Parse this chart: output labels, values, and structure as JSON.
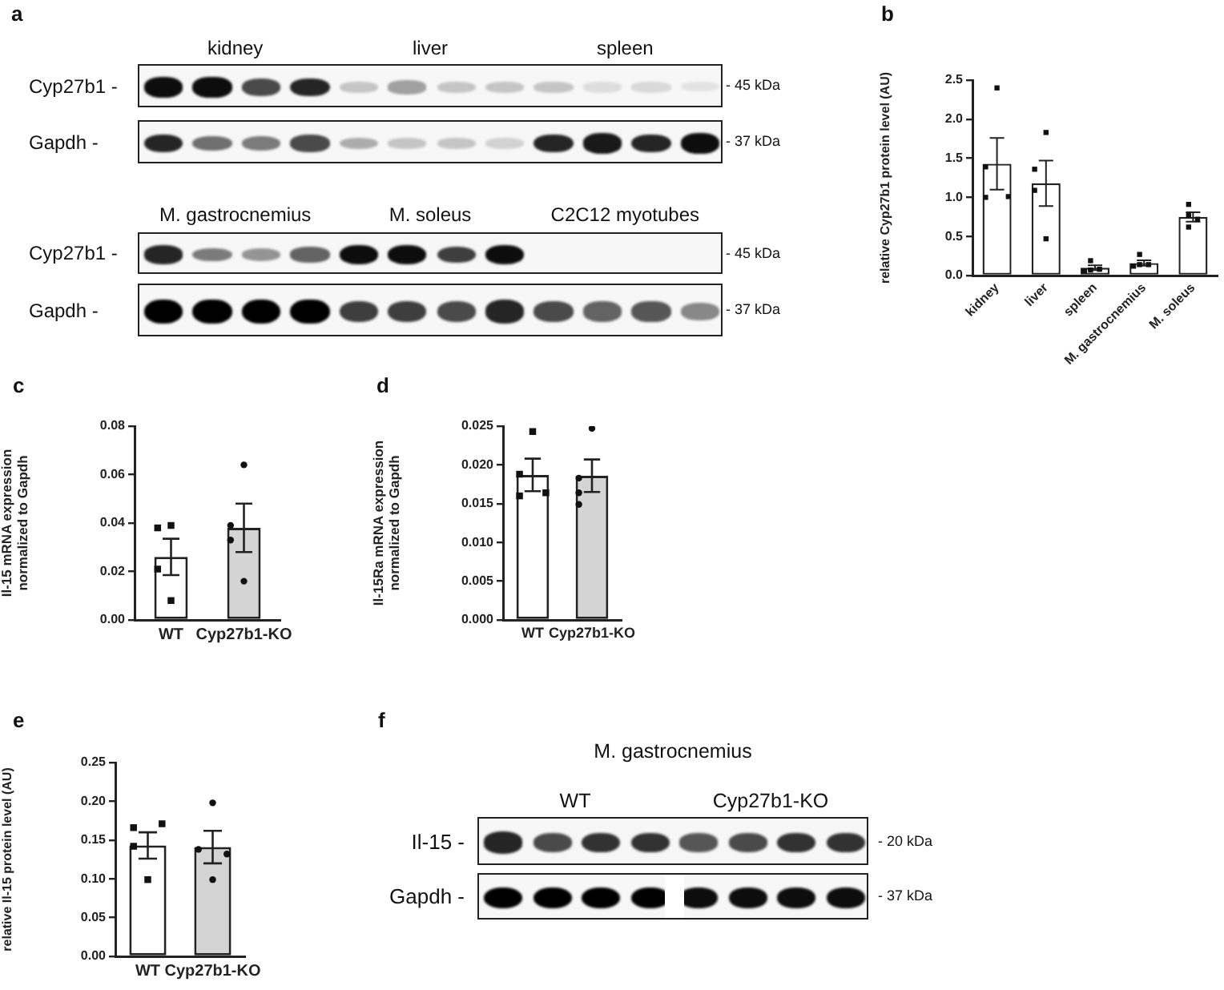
{
  "chart_data": [
    {
      "type": "other",
      "title": "a",
      "categories": [
        "kidney",
        "liver",
        "spleen"
      ],
      "y_categories": [
        "Cyp27b1 -",
        "Gapdh -"
      ],
      "y2_categories": [
        "- 45 kDa",
        "- 37 kDa"
      ]
    },
    {
      "type": "other",
      "categories": [
        "M. gastrocnemius",
        "M. soleus",
        "C2C12 myotubes"
      ],
      "y_categories": [
        "Cyp27b1 -",
        "Gapdh -"
      ],
      "y2_categories": [
        "- 45 kDa",
        "- 37 kDa"
      ]
    },
    {
      "type": "bar",
      "title": "b",
      "ylabel": "relative Cyp27b1 protein level (AU)",
      "categories": [
        "kidney",
        "liver",
        "spleen",
        "M. gastrocnemius",
        "M. soleus"
      ],
      "series": [
        {
          "type": "bar",
          "color": "#ffffff",
          "values": [
            1.43,
            1.18,
            0.1,
            0.16,
            0.75
          ],
          "errors": [
            0.33,
            0.29,
            0.03,
            0.035,
            0.06
          ]
        },
        {
          "type": "scatter",
          "color": "#111111",
          "marker": "square",
          "x": [
            "kidney",
            "kidney",
            "kidney",
            "kidney",
            "liver",
            "liver",
            "liver",
            "liver",
            "spleen",
            "spleen",
            "spleen",
            "spleen",
            "M. gastrocnemius",
            "M. gastrocnemius",
            "M. gastrocnemius",
            "M. gastrocnemius",
            "M. soleus",
            "M. soleus",
            "M. soleus",
            "M. soleus"
          ],
          "values": [
            2.4,
            1.39,
            1.0,
            1.01,
            1.83,
            1.36,
            1.09,
            0.47,
            0.19,
            0.07,
            0.08,
            0.06,
            0.27,
            0.14,
            0.14,
            0.12,
            0.91,
            0.77,
            0.72,
            0.62
          ]
        }
      ],
      "ylim": [
        0,
        2.5
      ],
      "yticks": [
        {
          "value": 0,
          "label": "0.0"
        },
        0.5,
        {
          "value": 1,
          "label": "1.0"
        },
        1.5,
        {
          "value": 2,
          "label": "2.0"
        },
        2.5
      ],
      "grid": false
    },
    {
      "type": "bar",
      "title": "c",
      "ylabel": "Il-15 mRNA expression normalized to Gapdh",
      "categories": [
        "WT",
        "Cyp27b1-KO"
      ],
      "series": [
        {
          "type": "bar",
          "colors": [
            "#ffffff",
            "#d4d4d4"
          ],
          "values": [
            0.026,
            0.038
          ],
          "errors": [
            0.0075,
            0.01
          ]
        },
        {
          "type": "scatter",
          "color": "#111111",
          "marker": "square",
          "x": [
            "WT",
            "WT",
            "WT",
            "WT"
          ],
          "values": [
            0.038,
            0.039,
            0.021,
            0.008
          ]
        },
        {
          "type": "scatter",
          "color": "#111111",
          "marker": "circle",
          "x": [
            "Cyp27b1-KO",
            "Cyp27b1-KO",
            "Cyp27b1-KO",
            "Cyp27b1-KO"
          ],
          "values": [
            0.064,
            0.039,
            0.033,
            0.016
          ]
        }
      ],
      "ylim": [
        0,
        0.08
      ],
      "yticks": [
        {
          "value": 0,
          "label": "0.00"
        },
        0.02,
        0.04,
        0.06,
        0.08
      ],
      "grid": false
    },
    {
      "type": "bar",
      "title": "d",
      "ylabel": "Il-15Ra mRNA expression normalized to Gapdh",
      "categories": [
        "WT",
        "Cyp27b1-KO"
      ],
      "series": [
        {
          "type": "bar",
          "colors": [
            "#ffffff",
            "#d4d4d4"
          ],
          "values": [
            0.0187,
            0.0186
          ],
          "errors": [
            0.0021,
            0.0021
          ]
        },
        {
          "type": "scatter",
          "color": "#111111",
          "marker": "square",
          "x": [
            "WT",
            "WT",
            "WT",
            "WT"
          ],
          "values": [
            0.0243,
            0.0188,
            0.016,
            0.0164
          ]
        },
        {
          "type": "scatter",
          "color": "#111111",
          "marker": "circle",
          "x": [
            "Cyp27b1-KO",
            "Cyp27b1-KO",
            "Cyp27b1-KO",
            "Cyp27b1-KO"
          ],
          "values": [
            0.0247,
            0.0183,
            0.0164,
            0.0149
          ]
        }
      ],
      "ylim": [
        0,
        0.025
      ],
      "yticks": [
        {
          "value": 0,
          "label": "0.000"
        },
        0.005,
        {
          "value": 0.01,
          "label": "0.010"
        },
        0.015,
        {
          "value": 0.02,
          "label": "0.020"
        },
        0.025
      ],
      "grid": false
    },
    {
      "type": "bar",
      "title": "e",
      "ylabel": "relative Il-15 protein level (AU)",
      "categories": [
        "WT",
        "Cyp27b1-KO"
      ],
      "series": [
        {
          "type": "bar",
          "colors": [
            "#ffffff",
            "#d4d4d4"
          ],
          "values": [
            0.143,
            0.141
          ],
          "errors": [
            0.017,
            0.021
          ]
        },
        {
          "type": "scatter",
          "color": "#111111",
          "marker": "square",
          "x": [
            "WT",
            "WT",
            "WT",
            "WT"
          ],
          "values": [
            0.166,
            0.171,
            0.142,
            0.099
          ]
        },
        {
          "type": "scatter",
          "color": "#111111",
          "marker": "circle",
          "x": [
            "Cyp27b1-KO",
            "Cyp27b1-KO",
            "Cyp27b1-KO",
            "Cyp27b1-KO"
          ],
          "values": [
            0.198,
            0.138,
            0.132,
            0.099
          ]
        }
      ],
      "ylim": [
        0,
        0.25
      ],
      "yticks": [
        {
          "value": 0,
          "label": "0.00"
        },
        0.05,
        {
          "value": 0.1,
          "label": "0.10"
        },
        0.15,
        {
          "value": 0.2,
          "label": "0.20"
        },
        0.25
      ],
      "grid": false
    },
    {
      "type": "other",
      "title": "f",
      "subtitle": "M. gastrocnemius",
      "categories": [
        "WT",
        "Cyp27b1-KO"
      ],
      "y_categories": [
        "Il-15 -",
        "Gapdh -"
      ],
      "y2_categories": [
        "- 20 kDa",
        "- 37 kDa"
      ]
    }
  ]
}
